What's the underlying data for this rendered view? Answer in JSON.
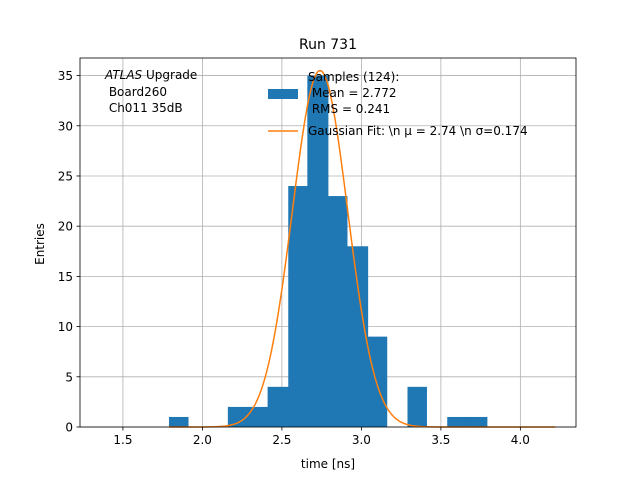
{
  "chart_data": {
    "type": "bar",
    "title": "Run 731",
    "xlabel": "time [ns]",
    "ylabel": "Entries",
    "xlim": [
      1.23,
      4.35
    ],
    "ylim": [
      0,
      36.75
    ],
    "xticks": [
      1.5,
      2.0,
      2.5,
      3.0,
      3.5,
      4.0
    ],
    "xtick_labels": [
      "1.5",
      "2.0",
      "2.5",
      "3.0",
      "3.5",
      "4.0"
    ],
    "yticks": [
      0,
      5,
      10,
      15,
      20,
      25,
      30,
      35
    ],
    "ytick_labels": [
      "0",
      "5",
      "10",
      "15",
      "20",
      "25",
      "30",
      "35"
    ],
    "grid": true,
    "histogram": {
      "color": "#1f77b4",
      "bins": [
        {
          "x0": 1.79,
          "x1": 1.91,
          "count": 1
        },
        {
          "x0": 1.91,
          "x1": 2.04,
          "count": 0
        },
        {
          "x0": 2.04,
          "x1": 2.16,
          "count": 0
        },
        {
          "x0": 2.16,
          "x1": 2.29,
          "count": 2
        },
        {
          "x0": 2.29,
          "x1": 2.41,
          "count": 2
        },
        {
          "x0": 2.41,
          "x1": 2.54,
          "count": 4
        },
        {
          "x0": 2.54,
          "x1": 2.66,
          "count": 24
        },
        {
          "x0": 2.66,
          "x1": 2.79,
          "count": 35
        },
        {
          "x0": 2.79,
          "x1": 2.91,
          "count": 23
        },
        {
          "x0": 2.91,
          "x1": 3.04,
          "count": 18
        },
        {
          "x0": 3.04,
          "x1": 3.16,
          "count": 9
        },
        {
          "x0": 3.16,
          "x1": 3.29,
          "count": 0
        },
        {
          "x0": 3.29,
          "x1": 3.41,
          "count": 4
        },
        {
          "x0": 3.41,
          "x1": 3.54,
          "count": 0
        },
        {
          "x0": 3.54,
          "x1": 3.66,
          "count": 1
        },
        {
          "x0": 3.66,
          "x1": 3.79,
          "count": 1
        }
      ]
    },
    "fit": {
      "type": "gaussian",
      "color": "#ff7f0e",
      "amplitude": 35.5,
      "mu": 2.74,
      "sigma": 0.174,
      "x_range": [
        1.79,
        4.22
      ]
    },
    "legend": {
      "placement": "top-right",
      "hist_label_lines": [
        "Samples (124):",
        " Mean = 2.772",
        " RMS = 0.241"
      ],
      "fit_label": "Gaussian Fit: \\n μ = 2.74 \\n σ=0.174"
    },
    "annotation": {
      "placement": "top-left",
      "line1_italic": "ATLAS",
      "line1_rest": " Upgrade",
      "line2": " Board260",
      "line3": " Ch011 35dB"
    }
  }
}
